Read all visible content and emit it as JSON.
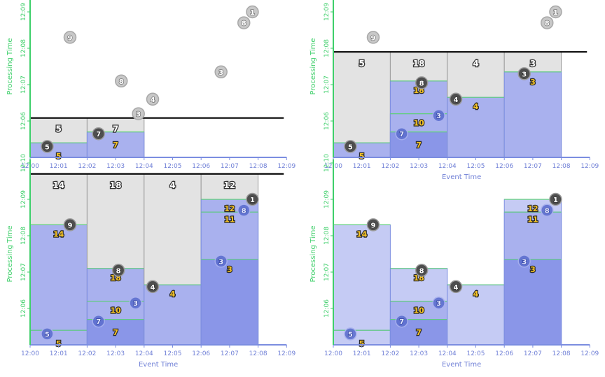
{
  "colors": {
    "axis_x": "#7b8de0",
    "axis_y": "#3ecf6a",
    "label_x": "#6f7fd6",
    "label_y": "#3ecf6a",
    "watermark": "#000000",
    "pane_gray": "#e3e3e3",
    "pane_gray_stroke": "#9a9a9a",
    "fill_light": "#c5cbf4",
    "fill_mid": "#a9b1ee",
    "fill_dark": "#8a96e8",
    "pane_stroke": "#7b8de0",
    "top_line": "#5fd07a",
    "gold": "#f7c325",
    "circle_gray": "#c8c8c8",
    "circle_dark": "#4e4e4e",
    "circle_blue": "#5d6fcf"
  },
  "axes": {
    "x_title": "Event Time",
    "y_title": "Processing Time",
    "x_ticks": [
      "12:00",
      "12:01",
      "12:02",
      "12:03",
      "12:04",
      "12:05",
      "12:06",
      "12:07",
      "12:08",
      "12:09"
    ],
    "y_ticks": [
      "12:06",
      "12:07",
      "12:08",
      "12:09",
      "12:10"
    ]
  },
  "panels": [
    {
      "id": "p1",
      "watermark": 6.0833,
      "panes": [
        {
          "x0": 0,
          "x1": 2,
          "top": 6.0833,
          "gray": true,
          "layers": [
            {
              "top": 5.4,
              "tone": "mid",
              "line": true
            }
          ],
          "gray_label": {
            "text": "5",
            "x": 1.0,
            "y": 5.8
          },
          "sums": [
            {
              "text": "5",
              "x": 1.0,
              "y": 5.04
            }
          ]
        },
        {
          "x0": 2,
          "x1": 4,
          "top": 6.0833,
          "gray": true,
          "layers": [
            {
              "top": 5.7,
              "tone": "mid",
              "line": true
            }
          ],
          "gray_label": {
            "text": "7",
            "x": 3.0,
            "y": 5.8
          },
          "sums": [
            {
              "text": "7",
              "x": 3.0,
              "y": 5.35
            }
          ]
        }
      ],
      "circles": [
        {
          "text": "5",
          "x": 0.6,
          "y": 5.3,
          "style": "dark"
        },
        {
          "text": "9",
          "x": 1.4,
          "y": 8.3,
          "style": "gray"
        },
        {
          "text": "7",
          "x": 2.4,
          "y": 5.65,
          "style": "dark"
        },
        {
          "text": "8",
          "x": 3.2,
          "y": 7.1,
          "style": "gray"
        },
        {
          "text": "3",
          "x": 3.8,
          "y": 6.2,
          "style": "gray"
        },
        {
          "text": "4",
          "x": 4.3,
          "y": 6.6,
          "style": "gray"
        },
        {
          "text": "3",
          "x": 6.7,
          "y": 7.35,
          "style": "gray"
        },
        {
          "text": "8",
          "x": 7.5,
          "y": 8.7,
          "style": "gray"
        },
        {
          "text": "1",
          "x": 7.8,
          "y": 9.0,
          "style": "gray"
        }
      ]
    },
    {
      "id": "p2",
      "watermark": 7.9,
      "panes": [
        {
          "x0": 0,
          "x1": 2,
          "top": 7.9,
          "gray": true,
          "layers": [
            {
              "top": 5.4,
              "tone": "mid",
              "line": true
            }
          ],
          "gray_label": {
            "text": "5",
            "x": 1.0,
            "y": 7.6
          },
          "sums": [
            {
              "text": "5",
              "x": 1.0,
              "y": 5.04
            }
          ]
        },
        {
          "x0": 2,
          "x1": 4,
          "top": 7.9,
          "gray": true,
          "layers": [
            {
              "top": 7.1,
              "tone": "mid",
              "line": true
            },
            {
              "top": 6.2,
              "tone": "mid",
              "line": true
            },
            {
              "top": 5.7,
              "tone": "dark",
              "line": true
            }
          ],
          "gray_label": {
            "text": "18",
            "x": 3.0,
            "y": 7.6
          },
          "sums": [
            {
              "text": "18",
              "x": 3.0,
              "y": 6.85
            },
            {
              "text": "10",
              "x": 3.0,
              "y": 5.95
            },
            {
              "text": "7",
              "x": 3.0,
              "y": 5.35
            }
          ]
        },
        {
          "x0": 4,
          "x1": 6,
          "top": 7.9,
          "gray": true,
          "layers": [
            {
              "top": 6.65,
              "tone": "mid",
              "line": true
            }
          ],
          "gray_label": {
            "text": "4",
            "x": 5.0,
            "y": 7.6
          },
          "sums": [
            {
              "text": "4",
              "x": 5.0,
              "y": 6.4
            }
          ]
        },
        {
          "x0": 6,
          "x1": 8,
          "top": 7.9,
          "gray": true,
          "layers": [
            {
              "top": 7.35,
              "tone": "mid",
              "line": true
            }
          ],
          "gray_label": {
            "text": "3",
            "x": 7.0,
            "y": 7.6
          },
          "sums": [
            {
              "text": "3",
              "x": 7.0,
              "y": 7.08
            }
          ]
        }
      ],
      "circles": [
        {
          "text": "5",
          "x": 0.6,
          "y": 5.3,
          "style": "dark"
        },
        {
          "text": "9",
          "x": 1.4,
          "y": 8.3,
          "style": "gray"
        },
        {
          "text": "7",
          "x": 2.4,
          "y": 5.65,
          "style": "blue"
        },
        {
          "text": "8",
          "x": 3.1,
          "y": 7.05,
          "style": "dark"
        },
        {
          "text": "3",
          "x": 3.7,
          "y": 6.15,
          "style": "blue"
        },
        {
          "text": "4",
          "x": 4.3,
          "y": 6.6,
          "style": "dark"
        },
        {
          "text": "3",
          "x": 6.7,
          "y": 7.3,
          "style": "dark"
        },
        {
          "text": "8",
          "x": 7.5,
          "y": 8.7,
          "style": "gray"
        },
        {
          "text": "1",
          "x": 7.8,
          "y": 9.0,
          "style": "gray"
        }
      ]
    },
    {
      "id": "p3",
      "watermark": 9.7,
      "panes": [
        {
          "x0": 0,
          "x1": 2,
          "top": 9.7,
          "gray": true,
          "layers": [
            {
              "top": 8.3,
              "tone": "mid",
              "line": true
            },
            {
              "top": 5.4,
              "tone": "mid",
              "line": true
            }
          ],
          "gray_label": {
            "text": "14",
            "x": 1.0,
            "y": 9.4
          },
          "sums": [
            {
              "text": "14",
              "x": 1.0,
              "y": 8.05
            },
            {
              "text": "5",
              "x": 1.0,
              "y": 5.04
            }
          ]
        },
        {
          "x0": 2,
          "x1": 4,
          "top": 9.7,
          "gray": true,
          "layers": [
            {
              "top": 7.1,
              "tone": "mid",
              "line": true
            },
            {
              "top": 6.2,
              "tone": "mid",
              "line": true
            },
            {
              "top": 5.7,
              "tone": "dark",
              "line": true
            }
          ],
          "gray_label": {
            "text": "18",
            "x": 3.0,
            "y": 9.4
          },
          "sums": [
            {
              "text": "18",
              "x": 3.0,
              "y": 6.85
            },
            {
              "text": "10",
              "x": 3.0,
              "y": 5.95
            },
            {
              "text": "7",
              "x": 3.0,
              "y": 5.35
            }
          ]
        },
        {
          "x0": 4,
          "x1": 6,
          "top": 9.7,
          "gray": true,
          "layers": [
            {
              "top": 6.65,
              "tone": "mid",
              "line": true
            }
          ],
          "gray_label": {
            "text": "4",
            "x": 5.0,
            "y": 9.4
          },
          "sums": [
            {
              "text": "4",
              "x": 5.0,
              "y": 6.4
            }
          ]
        },
        {
          "x0": 6,
          "x1": 8,
          "top": 9.7,
          "gray": true,
          "layers": [
            {
              "top": 9.0,
              "tone": "mid",
              "line": true
            },
            {
              "top": 8.65,
              "tone": "mid",
              "line": true
            },
            {
              "top": 7.35,
              "tone": "dark",
              "line": true
            }
          ],
          "gray_label": {
            "text": "12",
            "x": 7.0,
            "y": 9.4
          },
          "sums": [
            {
              "text": "12",
              "x": 7.0,
              "y": 8.75
            },
            {
              "text": "11",
              "x": 7.0,
              "y": 8.45
            },
            {
              "text": "3",
              "x": 7.0,
              "y": 7.08
            }
          ]
        }
      ],
      "circles": [
        {
          "text": "5",
          "x": 0.6,
          "y": 5.3,
          "style": "blue"
        },
        {
          "text": "9",
          "x": 1.4,
          "y": 8.3,
          "style": "dark"
        },
        {
          "text": "7",
          "x": 2.4,
          "y": 5.65,
          "style": "blue"
        },
        {
          "text": "8",
          "x": 3.1,
          "y": 7.05,
          "style": "dark"
        },
        {
          "text": "3",
          "x": 3.7,
          "y": 6.15,
          "style": "blue"
        },
        {
          "text": "4",
          "x": 4.3,
          "y": 6.6,
          "style": "dark"
        },
        {
          "text": "3",
          "x": 6.7,
          "y": 7.3,
          "style": "blue"
        },
        {
          "text": "8",
          "x": 7.5,
          "y": 8.7,
          "style": "blue"
        },
        {
          "text": "1",
          "x": 7.8,
          "y": 9.0,
          "style": "dark"
        }
      ]
    },
    {
      "id": "p4",
      "watermark": null,
      "panes": [
        {
          "x0": 0,
          "x1": 2,
          "top": 8.3,
          "gray": false,
          "layers": [
            {
              "top": 8.3,
              "tone": "light",
              "line": true
            },
            {
              "top": 5.4,
              "tone": "light",
              "line": true
            }
          ],
          "sums": [
            {
              "text": "14",
              "x": 1.0,
              "y": 8.05
            },
            {
              "text": "5",
              "x": 1.0,
              "y": 5.04
            }
          ]
        },
        {
          "x0": 2,
          "x1": 4,
          "top": 7.1,
          "gray": false,
          "layers": [
            {
              "top": 7.1,
              "tone": "light",
              "line": true
            },
            {
              "top": 6.2,
              "tone": "mid",
              "line": true
            },
            {
              "top": 5.7,
              "tone": "dark",
              "line": true
            }
          ],
          "sums": [
            {
              "text": "18",
              "x": 3.0,
              "y": 6.85
            },
            {
              "text": "10",
              "x": 3.0,
              "y": 5.95
            },
            {
              "text": "7",
              "x": 3.0,
              "y": 5.35
            }
          ]
        },
        {
          "x0": 4,
          "x1": 6,
          "top": 6.65,
          "gray": false,
          "layers": [
            {
              "top": 6.65,
              "tone": "light",
              "line": true
            }
          ],
          "sums": [
            {
              "text": "4",
              "x": 5.0,
              "y": 6.4
            }
          ]
        },
        {
          "x0": 6,
          "x1": 8,
          "top": 9.0,
          "gray": false,
          "layers": [
            {
              "top": 9.0,
              "tone": "light",
              "line": true
            },
            {
              "top": 8.65,
              "tone": "mid",
              "line": true
            },
            {
              "top": 7.35,
              "tone": "dark",
              "line": true
            }
          ],
          "sums": [
            {
              "text": "12",
              "x": 7.0,
              "y": 8.75
            },
            {
              "text": "11",
              "x": 7.0,
              "y": 8.45
            },
            {
              "text": "3",
              "x": 7.0,
              "y": 7.08
            }
          ]
        }
      ],
      "circles": [
        {
          "text": "5",
          "x": 0.6,
          "y": 5.3,
          "style": "blue"
        },
        {
          "text": "9",
          "x": 1.4,
          "y": 8.3,
          "style": "dark"
        },
        {
          "text": "7",
          "x": 2.4,
          "y": 5.65,
          "style": "blue"
        },
        {
          "text": "8",
          "x": 3.1,
          "y": 7.05,
          "style": "dark"
        },
        {
          "text": "3",
          "x": 3.7,
          "y": 6.15,
          "style": "blue"
        },
        {
          "text": "4",
          "x": 4.3,
          "y": 6.6,
          "style": "dark"
        },
        {
          "text": "3",
          "x": 6.7,
          "y": 7.3,
          "style": "blue"
        },
        {
          "text": "8",
          "x": 7.5,
          "y": 8.7,
          "style": "blue"
        },
        {
          "text": "1",
          "x": 7.8,
          "y": 9.0,
          "style": "dark"
        }
      ]
    }
  ]
}
